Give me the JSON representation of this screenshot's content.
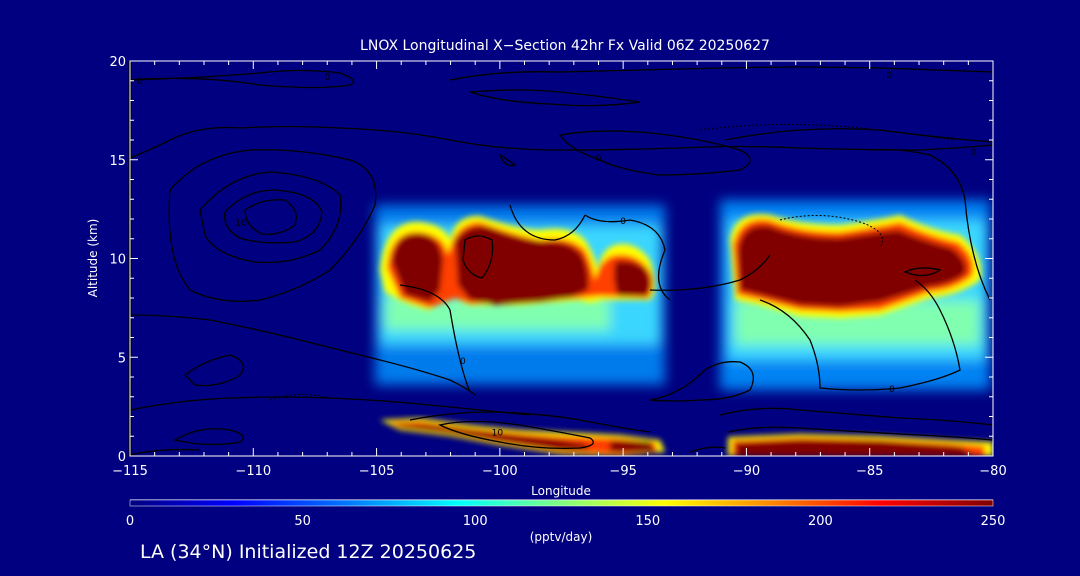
{
  "chart_data": {
    "type": "heatmap",
    "title": "LNOX Longitudinal X−Section 42hr  Fx Valid 06Z 20250627",
    "xlabel": "Longitude",
    "ylabel": "Altitude (km)",
    "xlim": [
      -115,
      -80
    ],
    "ylim": [
      0,
      20
    ],
    "x_ticks": [
      -115,
      -110,
      -105,
      -100,
      -95,
      -90,
      -85,
      -80
    ],
    "x_tick_labels": [
      "−115",
      "−110",
      "−105",
      "−100",
      "−95",
      "−90",
      "−85",
      "−80"
    ],
    "y_ticks": [
      0,
      5,
      10,
      15,
      20
    ],
    "y_tick_labels": [
      "0",
      "5",
      "10",
      "15",
      "20"
    ],
    "colorbar": {
      "min": 0,
      "max": 250,
      "ticks": [
        0,
        50,
        100,
        150,
        200,
        250
      ],
      "tick_labels": [
        "0",
        "50",
        "100",
        "150",
        "200",
        "250"
      ],
      "label": "(pptv/day)",
      "colors": [
        "#000080",
        "#0000ff",
        "#0080ff",
        "#00ffff",
        "#80ff80",
        "#ffff00",
        "#ff8000",
        "#ff0000",
        "#800000"
      ]
    },
    "contour_labels": [
      {
        "text": "0",
        "lon": -114.6,
        "alt": 19.0
      },
      {
        "text": "0",
        "lon": -107.0,
        "alt": 19.2
      },
      {
        "text": "0",
        "lon": -84.2,
        "alt": 19.3
      },
      {
        "text": "0",
        "lon": -96.0,
        "alt": 15.1
      },
      {
        "text": "0",
        "lon": -80.8,
        "alt": 15.4
      },
      {
        "text": "0",
        "lon": -95.0,
        "alt": 11.9
      },
      {
        "text": "0",
        "lon": -101.5,
        "alt": 4.8
      },
      {
        "text": "0",
        "lon": -84.1,
        "alt": 3.4
      },
      {
        "text": "10",
        "lon": -110.5,
        "alt": 11.8
      },
      {
        "text": "10",
        "lon": -100.1,
        "alt": 1.2
      }
    ],
    "description_note": ""
  },
  "bottom_label": "LA (34°N) Initialized 12Z 20250625"
}
